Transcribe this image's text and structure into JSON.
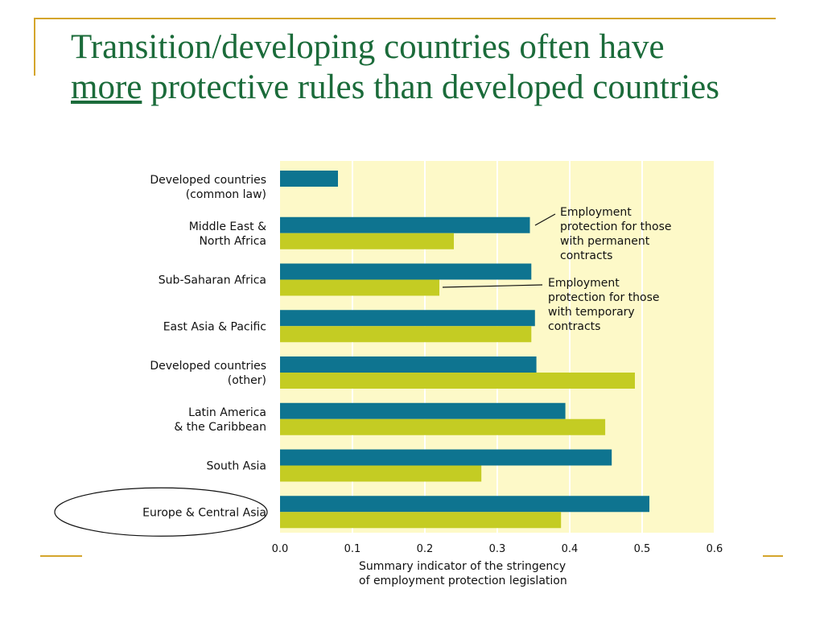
{
  "slide": {
    "title_part1": "Transition/developing countries often have",
    "title_emphasis": "more",
    "title_part2": "protective rules than developed countries"
  },
  "chart_data": {
    "type": "bar",
    "orientation": "horizontal",
    "categories": [
      [
        "Developed countries",
        "(common law)"
      ],
      [
        "Middle East &",
        "North Africa"
      ],
      [
        "Sub-Saharan Africa"
      ],
      [
        "East Asia & Pacific"
      ],
      [
        "Developed countries",
        "(other)"
      ],
      [
        "Latin America",
        "& the Caribbean"
      ],
      [
        "South Asia"
      ],
      [
        "Europe & Central Asia"
      ]
    ],
    "series": [
      {
        "name": "Employment protection for those with permanent contracts",
        "name_lines": [
          "Employment",
          "protection for those",
          "with permanent",
          "contracts"
        ],
        "color": "#0e7490",
        "values": [
          0.08,
          0.345,
          0.347,
          0.352,
          0.354,
          0.394,
          0.458,
          0.51
        ]
      },
      {
        "name": "Employment protection for those with temporary contracts",
        "name_lines": [
          "Employment",
          "protection for those",
          "with temporary",
          "contracts"
        ],
        "color": "#c4cc23",
        "values": [
          null,
          0.24,
          0.22,
          0.347,
          0.49,
          0.449,
          0.278,
          0.388
        ]
      }
    ],
    "xlim": [
      0,
      0.6
    ],
    "xticks": [
      "0.0",
      "0.1",
      "0.2",
      "0.3",
      "0.4",
      "0.5",
      "0.6"
    ],
    "xlabel_lines": [
      "Summary indicator of the stringency",
      "of employment protection legislation"
    ],
    "highlighted_category": "Europe & Central Asia",
    "background_color": "#fdf9c8",
    "grid": true
  }
}
